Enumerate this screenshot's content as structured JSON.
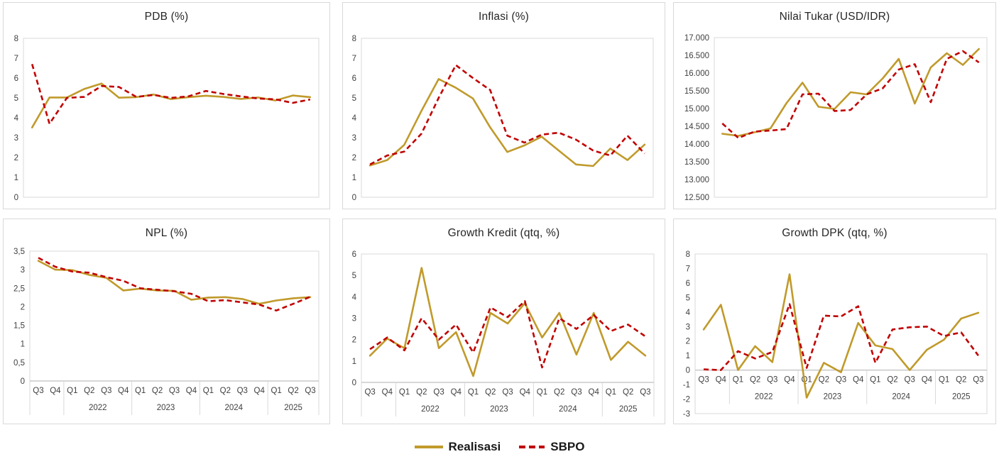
{
  "legend": {
    "realisasi": "Realisasi",
    "sbpo": "SBPO"
  },
  "colors": {
    "realisasi": "#C09A2B",
    "sbpo": "#C00000",
    "panel_border": "#D9D9D9",
    "axis_line": "#BFBFBF",
    "tick_text": "#404040",
    "title_text": "#262626"
  },
  "x_axis": {
    "quarters": [
      "Q3",
      "Q4",
      "Q1",
      "Q2",
      "Q3",
      "Q4",
      "Q1",
      "Q2",
      "Q3",
      "Q4",
      "Q1",
      "Q2",
      "Q3",
      "Q4",
      "Q1",
      "Q2",
      "Q3"
    ],
    "year_groups": [
      {
        "label": "",
        "count": 2
      },
      {
        "label": "2022",
        "count": 4
      },
      {
        "label": "2023",
        "count": 4
      },
      {
        "label": "2024",
        "count": 4
      },
      {
        "label": "2025",
        "count": 3
      }
    ]
  },
  "chart_data": [
    {
      "type": "line",
      "title": "PDB (%)",
      "ylim": [
        0,
        8
      ],
      "yticks": [
        "8",
        "7",
        "6",
        "5",
        "4",
        "3",
        "2",
        "1",
        "0"
      ],
      "grid": false,
      "legend_position": "bottom-shared",
      "series": [
        {
          "name": "Realisasi",
          "values": [
            3.51,
            5.02,
            5.02,
            5.45,
            5.72,
            5.01,
            5.04,
            5.17,
            4.94,
            5.04,
            5.11,
            5.05,
            4.95,
            5.02,
            4.87,
            5.12,
            5.04
          ]
        },
        {
          "name": "SBPO",
          "values": [
            6.7,
            3.7,
            5.0,
            5.05,
            5.6,
            5.55,
            5.05,
            5.15,
            5.0,
            5.08,
            5.35,
            5.2,
            5.08,
            4.97,
            4.93,
            4.75,
            4.92
          ]
        }
      ]
    },
    {
      "type": "line",
      "title": "Inflasi (%)",
      "ylim": [
        0,
        8
      ],
      "yticks": [
        "8",
        "7",
        "6",
        "5",
        "4",
        "3",
        "2",
        "1",
        "0"
      ],
      "grid": false,
      "legend_position": "bottom-shared",
      "series": [
        {
          "name": "Realisasi",
          "values": [
            1.6,
            1.87,
            2.64,
            4.35,
            5.95,
            5.51,
            4.97,
            3.52,
            2.28,
            2.61,
            3.05,
            2.35,
            1.65,
            1.57,
            2.45,
            1.87,
            2.65
          ]
        },
        {
          "name": "SBPO",
          "values": [
            1.65,
            2.1,
            2.3,
            3.2,
            5.0,
            6.65,
            6.0,
            5.4,
            3.1,
            2.75,
            3.15,
            3.25,
            2.9,
            2.35,
            2.1,
            3.1,
            2.2
          ]
        }
      ]
    },
    {
      "type": "line",
      "title": "Nilai Tukar (USD/IDR)",
      "ylim": [
        12500,
        17000
      ],
      "yticks": [
        "17.000",
        "16.500",
        "16.000",
        "15.500",
        "15.000",
        "14.500",
        "14.000",
        "13.500",
        "13.000",
        "12.500"
      ],
      "grid": false,
      "legend_position": "bottom-shared",
      "series": [
        {
          "name": "Realisasi",
          "values": [
            14290,
            14230,
            14330,
            14440,
            15150,
            15730,
            15050,
            14990,
            15460,
            15400,
            15850,
            16400,
            15140,
            16160,
            16560,
            16230,
            16680
          ]
        },
        {
          "name": "SBPO",
          "values": [
            14580,
            14170,
            14350,
            14380,
            14420,
            15400,
            15420,
            14930,
            14960,
            15400,
            15570,
            16100,
            16250,
            15180,
            16400,
            16620,
            16300
          ]
        }
      ]
    },
    {
      "type": "line",
      "title": "NPL (%)",
      "ylim": [
        0,
        3.5
      ],
      "yticks": [
        "3,5",
        "3",
        "2,5",
        "2",
        "1,5",
        "1",
        "0,5",
        "0"
      ],
      "grid": false,
      "legend_position": "bottom-shared",
      "series": [
        {
          "name": "Realisasi",
          "values": [
            3.24,
            3.0,
            2.99,
            2.86,
            2.78,
            2.44,
            2.49,
            2.44,
            2.43,
            2.19,
            2.25,
            2.26,
            2.21,
            2.08,
            2.17,
            2.23,
            2.26
          ]
        },
        {
          "name": "SBPO",
          "values": [
            3.32,
            3.08,
            2.95,
            2.92,
            2.8,
            2.7,
            2.5,
            2.46,
            2.42,
            2.35,
            2.15,
            2.18,
            2.12,
            2.06,
            1.9,
            2.08,
            2.27
          ]
        }
      ]
    },
    {
      "type": "line",
      "title": "Growth Kredit (qtq, %)",
      "ylim": [
        0,
        6
      ],
      "yticks": [
        "6",
        "5",
        "4",
        "3",
        "2",
        "1",
        "0"
      ],
      "grid": false,
      "legend_position": "bottom-shared",
      "series": [
        {
          "name": "Realisasi",
          "values": [
            1.25,
            2.05,
            1.6,
            5.35,
            1.6,
            2.35,
            0.3,
            3.25,
            2.75,
            3.7,
            2.1,
            3.25,
            1.3,
            3.25,
            1.05,
            1.9,
            1.25
          ]
        },
        {
          "name": "SBPO",
          "values": [
            1.55,
            2.1,
            1.5,
            3.0,
            2.0,
            2.7,
            1.4,
            3.5,
            3.05,
            3.8,
            0.7,
            3.0,
            2.5,
            3.15,
            2.4,
            2.7,
            2.15
          ]
        }
      ]
    },
    {
      "type": "line",
      "title": "Growth DPK (qtq, %)",
      "ylim": [
        -3,
        8
      ],
      "yticks": [
        "8",
        "7",
        "6",
        "5",
        "4",
        "3",
        "2",
        "1",
        "0",
        "-1",
        "-2",
        "-3"
      ],
      "grid": false,
      "legend_position": "bottom-shared",
      "series": [
        {
          "name": "Realisasi",
          "values": [
            2.8,
            4.5,
            0.0,
            1.65,
            0.55,
            6.6,
            -1.9,
            0.5,
            -0.15,
            3.25,
            1.7,
            1.45,
            0.0,
            1.4,
            2.1,
            3.55,
            3.95
          ]
        },
        {
          "name": "SBPO",
          "values": [
            0.05,
            0.0,
            1.3,
            0.8,
            1.25,
            4.55,
            0.15,
            3.75,
            3.7,
            4.4,
            0.5,
            2.8,
            2.95,
            3.0,
            2.35,
            2.6,
            1.0
          ]
        }
      ]
    }
  ]
}
